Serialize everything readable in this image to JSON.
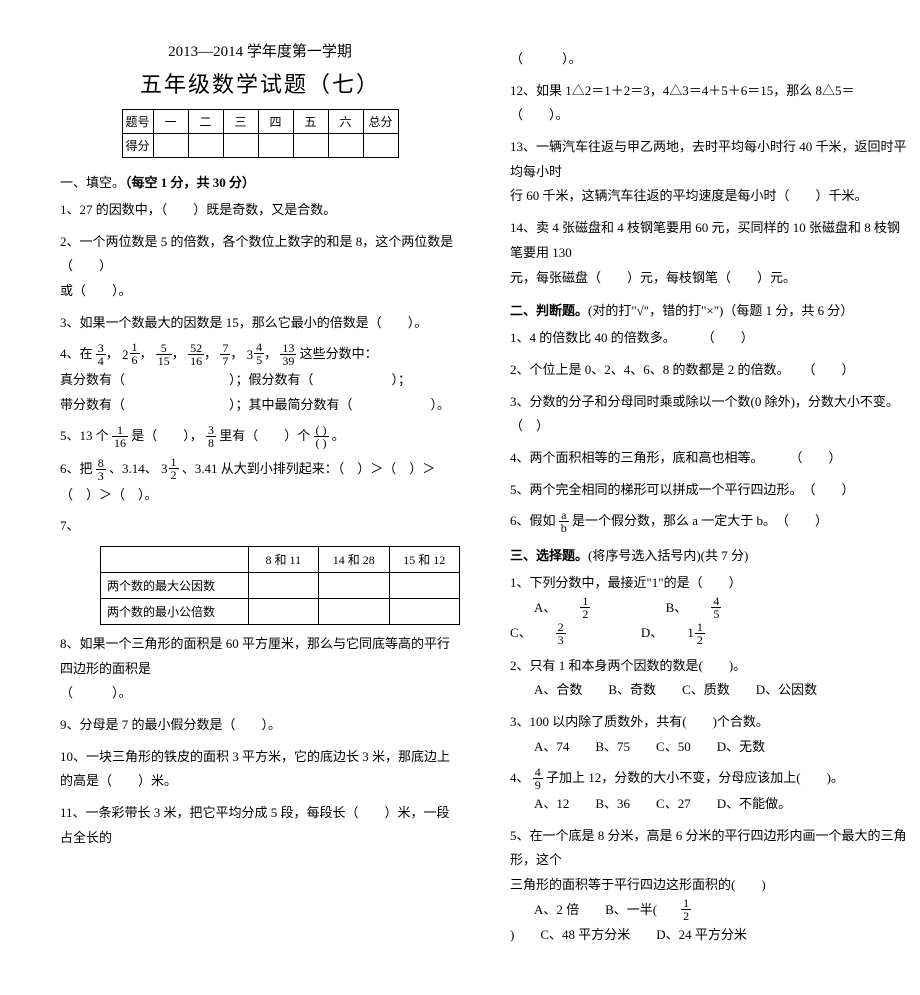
{
  "header": {
    "line1": "2013—2014 学年度第一学期",
    "line2": "五年级数学试题（七）"
  },
  "scoreTable": {
    "rowLabel1": "题号",
    "rowLabel2": "得分",
    "cols": [
      "一",
      "二",
      "三",
      "四",
      "五",
      "六"
    ],
    "sumLabel": "总分"
  },
  "sec1": {
    "title_a": "一、填空。",
    "title_b": "（每空 1 分，共 30 分）"
  },
  "q1": "1、27 的因数中，（　　）既是奇数，又是合数。",
  "q2": {
    "a": "2、一个两位数是 5 的倍数，各个数位上数字的和是 8，这个两位数是（　　）",
    "b": "或（　　）。"
  },
  "q3": "3、如果一个数最大的因数是 15，那么它最小的倍数是（　　）。",
  "q4": {
    "lead": "4、在",
    "tail": "这些分数中：",
    "line_zhen": "真分数有（　　　　　　　　）；假分数有（　　　　　　）；",
    "line_dai": "带分数有（　　　　　　　　）；其中最简分数有（　　　　　　）。",
    "fracs": [
      {
        "n": "3",
        "d": "4"
      },
      {
        "w": "2",
        "n": "1",
        "d": "6"
      },
      {
        "n": "5",
        "d": "15"
      },
      {
        "n": "52",
        "d": "16"
      },
      {
        "n": "7",
        "d": "7"
      },
      {
        "w": "3",
        "n": "4",
        "d": "5"
      },
      {
        "n": "13",
        "d": "39"
      }
    ]
  },
  "q5": {
    "a": "5、13 个",
    "b": "是（　　），",
    "c": "里有（　　）个",
    "d": "。",
    "f1": {
      "n": "1",
      "d": "16"
    },
    "f2": {
      "n": "3",
      "d": "8"
    },
    "f3": {
      "n": "(  )",
      "d": "(  )"
    }
  },
  "q6": {
    "a": "6、把",
    "b": "、3.14、",
    "c": "、3.41 从大到小排列起来：（　）＞（　）＞（　）＞（　）。",
    "f1": {
      "n": "8",
      "d": "3"
    },
    "f2": {
      "w": "3",
      "n": "1",
      "d": "2"
    }
  },
  "q7": "7、",
  "grid": {
    "headers": [
      "",
      "8 和 11",
      "14 和 28",
      "15 和 12"
    ],
    "row1": "两个数的最大公因数",
    "row2": "两个数的最小公倍数"
  },
  "q8": {
    "a": "8、如果一个三角形的面积是 60 平方厘米，那么与它同底等高的平行四边形的面积是",
    "b": "（　　　）。"
  },
  "q9": "9、分母是 7 的最小假分数是（　　）。",
  "q10": "10、一块三角形的铁皮的面积 3 平方米，它的底边长 3 米，那底边上的高是（　　）米。",
  "q11": "11、一条彩带长 3 米，把它平均分成 5 段，每段长（　　）米，一段占全长的",
  "q11b": "（　　　）。",
  "q12": "12、如果 1△2＝1＋2＝3，4△3＝4＋5＋6＝15，那么 8△5＝（　　）。",
  "q13": {
    "a": "13、一辆汽车往返与甲乙两地，去时平均每小时行 40 千米，返回时平均每小时",
    "b": "行 60 千米，这辆汽车往返的平均速度是每小时（　　）千米。"
  },
  "q14": {
    "a": "14、卖 4 张磁盘和 4 枝钢笔要用 60 元，买同样的 10 张磁盘和 8 枝钢笔要用 130",
    "b": "元，每张磁盘（　　）元，每枝钢笔（　　）元。"
  },
  "sec2": {
    "title_a": "二、判断题。",
    "title_b": "(对的打\"√\"，错的打\"×\")（每题 1 分，共 6 分）"
  },
  "j1": "1、4 的倍数比 40 的倍数多。　　　（　　）",
  "j2": "2、个位上是 0、2、4、6、8 的数都是 2 的倍数。　　（　　）",
  "j3": "3、分数的分子和分母同时乘或除以一个数(0 除外)，分数大小不变。（　）",
  "j4": "4、两个面积相等的三角形，底和高也相等。　　　（　　）",
  "j5": "5、两个完全相同的梯形可以拼成一个平行四边形。　（　　）",
  "j6": {
    "a": "6、假如",
    "b": "是一个假分数，那么 a 一定大于 b。　（　　）",
    "f": {
      "n": "a",
      "d": "b"
    }
  },
  "sec3": {
    "title_a": "三、选择题。",
    "title_b": "(将序号选入括号内)(共 7 分)"
  },
  "x1": {
    "q": "1、下列分数中，最接近\"1\"的是（　　）",
    "A": "A、",
    "B": "B、",
    "C": "C、",
    "D": "D、",
    "fa": {
      "n": "1",
      "d": "2"
    },
    "fb": {
      "n": "4",
      "d": "5"
    },
    "fc": {
      "n": "2",
      "d": "3"
    },
    "fd": {
      "w": "1",
      "n": "1",
      "d": "2"
    }
  },
  "x2": {
    "q": "2、只有 1 和本身两个因数的数是(　　)。",
    "opts": "A、合数　　B、奇数　　C、质数　　D、公因数"
  },
  "x3": {
    "q": "3、100 以内除了质数外，共有(　　)个合数。",
    "opts": "A、74　　B、75　　C、50　　D、无数"
  },
  "x4": {
    "a": "4、",
    "b": "子加上 12，分数的大小不变，分母应该加上(　　)。",
    "f": {
      "n": "4",
      "d": "9"
    },
    "opts": "A、12　　B、36　　C、27　　D、不能做。"
  },
  "x5": {
    "a": "5、在一个底是 8 分米，高是 6 分米的平行四边形内画一个最大的三角形，这个",
    "b": "三角形的面积等于平行四边这形面积的(　　)",
    "A": "A、2 倍　　B、一半(",
    "B": ")　　C、48 平方分米　　D、24 平方分米",
    "f": {
      "n": "1",
      "d": "2"
    }
  }
}
